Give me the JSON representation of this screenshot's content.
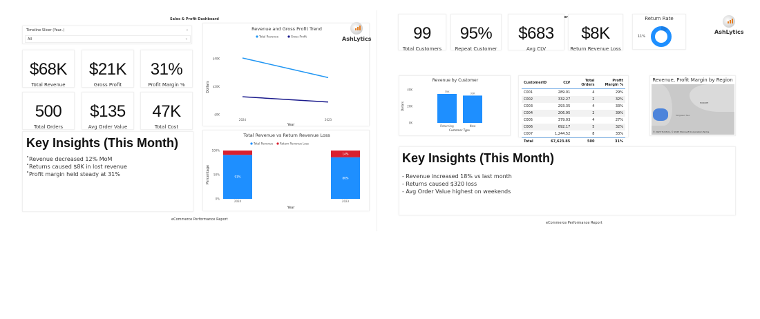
{
  "left": {
    "title": "Sales & Profit Dashboard",
    "slicer": {
      "label": "Timeline Slicer (Year..)",
      "value": "All"
    },
    "kpis": [
      {
        "value": "$68K",
        "label": "Total Revenue"
      },
      {
        "value": "$21K",
        "label": "Gross Profit"
      },
      {
        "value": "31%",
        "label": "Profit Margin %"
      },
      {
        "value": "500",
        "label": "Total Orders"
      },
      {
        "value": "$135",
        "label": "Avg Order Value"
      },
      {
        "value": "47K",
        "label": "Total Cost"
      }
    ],
    "insights": {
      "title": "Key Insights (This Month)",
      "items": [
        "˚Revenue decreased 12% MoM",
        "˚Returns caused $8K in lost revenue",
        "˚Profit margin held steady at 31%"
      ]
    },
    "footer": "eCommerce Performance Report",
    "logo": "AshLytics"
  },
  "right": {
    "title": "Customer Insights",
    "kpis": [
      {
        "value": "99",
        "label": "Total Customers"
      },
      {
        "value": "95%",
        "label": "Repeat Customer"
      },
      {
        "value": "$683",
        "label": "Avg CLV"
      },
      {
        "value": "$8K",
        "label": "Return Revenue Loss"
      }
    ],
    "return_rate": {
      "title": "Return Rate",
      "value": "11%",
      "fraction": 0.11
    },
    "table": {
      "headers": [
        "CustomerID",
        "CLV",
        "Total Orders",
        "Profit Margin %"
      ],
      "rows": [
        [
          "C001",
          "289.01",
          "4",
          "29%"
        ],
        [
          "C002",
          "332.27",
          "2",
          "32%"
        ],
        [
          "C003",
          "293.35",
          "4",
          "33%"
        ],
        [
          "C004",
          "206.95",
          "2",
          "39%"
        ],
        [
          "C005",
          "379.03",
          "4",
          "27%"
        ],
        [
          "C006",
          "692.17",
          "5",
          "32%"
        ],
        [
          "C007",
          "1,244.52",
          "8",
          "33%"
        ]
      ],
      "total": [
        "Total",
        "67,623.85",
        "500",
        "31%"
      ]
    },
    "map": {
      "title": "Revenue, Profit Margin by Region",
      "label": "EUROPE",
      "label2": "Sargasso Sea",
      "credit": "© 2025 TomTom, © 2025 Microsoft Corporation Terms"
    },
    "insights": {
      "title": "Key Insights (This Month)",
      "items": [
        "- Revenue increased 18% vs last month",
        "- Returns caused $320 loss",
        "- Avg Order Value highest on weekends"
      ]
    },
    "footer": "eCommerce Performance Report",
    "logo": "AshLytics"
  },
  "chart_data": [
    {
      "type": "line",
      "title": "Revenue and Gross Profit Trend",
      "xlabel": "Year",
      "ylabel": "Dollars",
      "categories": [
        "2024",
        "2023"
      ],
      "yticks": [
        "$0K",
        "$20K",
        "$40K"
      ],
      "ylim": [
        0,
        40000
      ],
      "series": [
        {
          "name": "Total Revenue",
          "values": [
            40500,
            26500
          ],
          "color": "#2196f3"
        },
        {
          "name": "Gross Profit",
          "values": [
            12800,
            9000
          ],
          "color": "#1a1a8c"
        }
      ],
      "legend": "top"
    },
    {
      "type": "bar",
      "stacked": "percent",
      "title": "Total Revenue vs Return Revenue Loss",
      "xlabel": "Year",
      "ylabel": "Percentage",
      "categories": [
        "2024",
        "2023"
      ],
      "yticks": [
        "0%",
        "50%",
        "100%"
      ],
      "series": [
        {
          "name": "Total Revenue",
          "values": [
            91,
            86
          ],
          "labels": [
            "91%",
            "86%"
          ],
          "color": "#1e8fff"
        },
        {
          "name": "Return Revenue Loss",
          "values": [
            9,
            14
          ],
          "labels": [
            "",
            "14%"
          ],
          "color": "#d9202f"
        }
      ],
      "legend": "top"
    },
    {
      "type": "bar",
      "title": "Revenue by Customer",
      "xlabel": "Customer Type",
      "ylabel": "Dollars",
      "categories": [
        "Returning",
        "New"
      ],
      "values": [
        35000,
        33000
      ],
      "labels": [
        "35K",
        "33K"
      ],
      "yticks": [
        "0K",
        "20K",
        "40K"
      ],
      "ylim": [
        0,
        40000
      ],
      "color": "#1e8fff"
    }
  ]
}
